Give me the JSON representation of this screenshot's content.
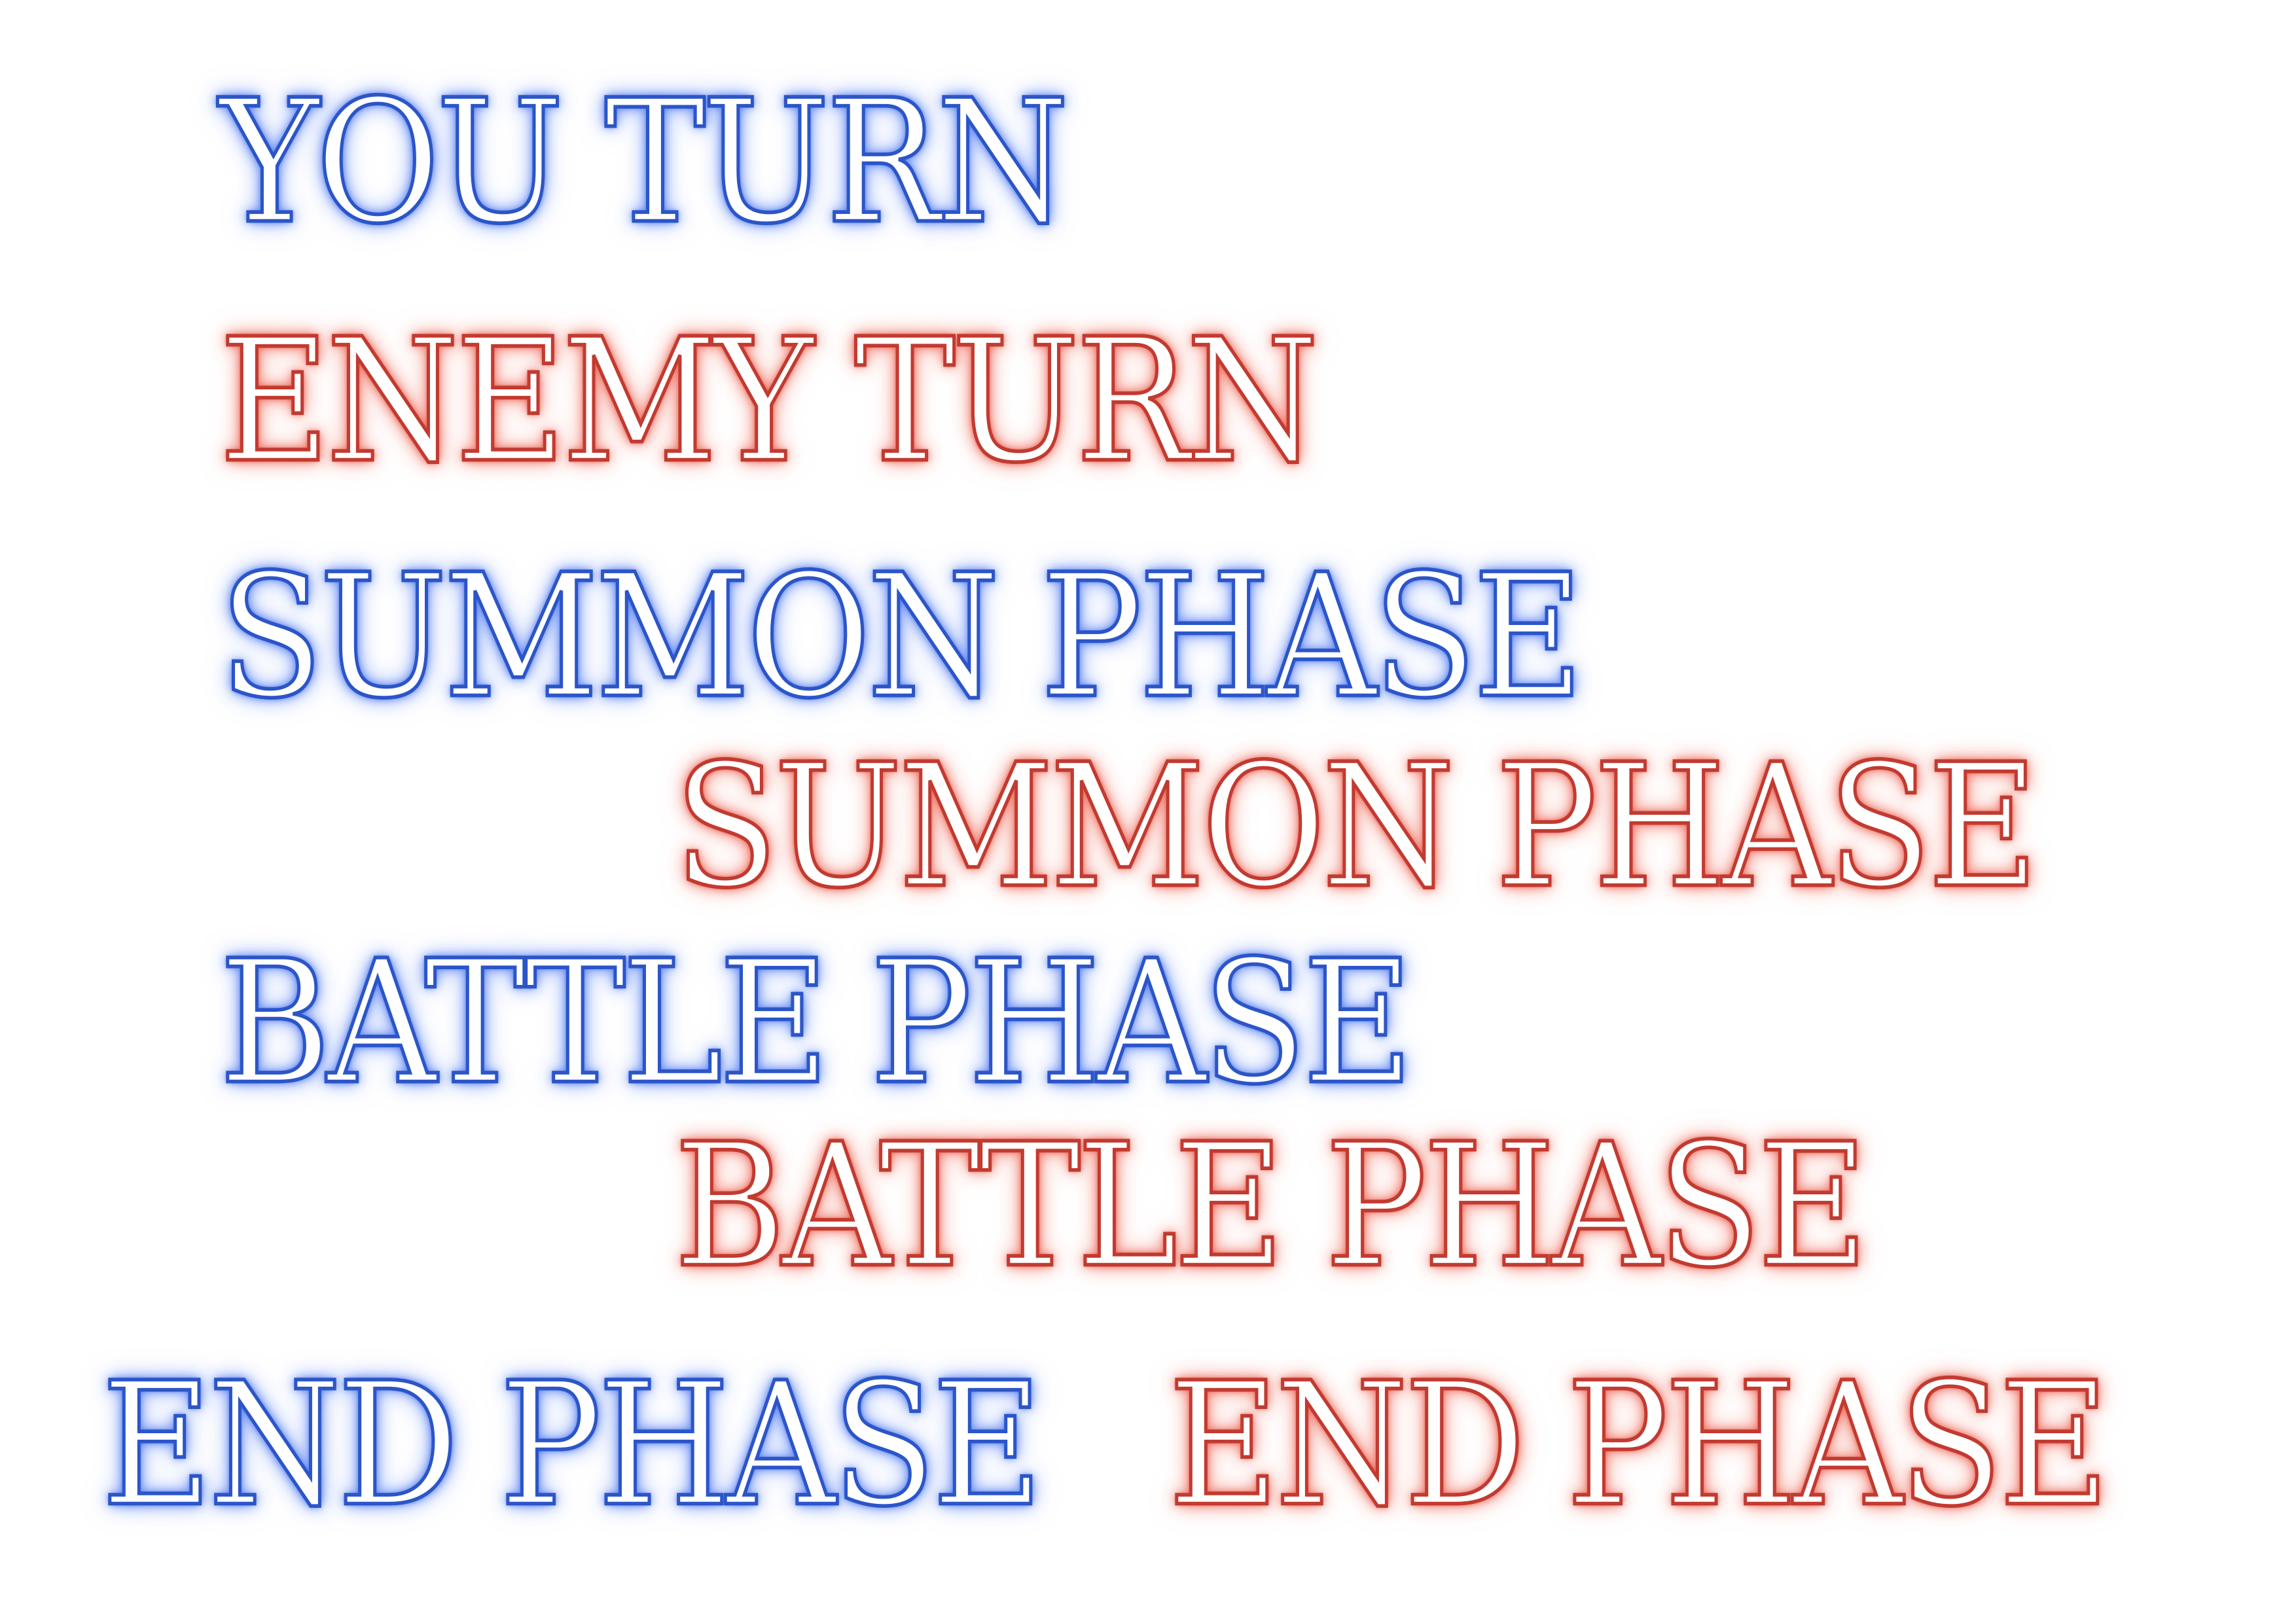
{
  "banners": {
    "you_turn": "YOU TURN",
    "enemy_turn": "ENEMY TURN",
    "summon_phase_player": "SUMMON PHASE",
    "summon_phase_enemy": "SUMMON PHASE",
    "battle_phase_player": "BATTLE PHASE",
    "battle_phase_enemy": "BATTLE PHASE",
    "end_phase_player": "END PHASE",
    "end_phase_enemy": "END PHASE"
  },
  "colors": {
    "player_glow": "#2b55c8",
    "enemy_glow": "#c23a30",
    "text_fill": "#ffffff",
    "background": "#ffffff"
  }
}
